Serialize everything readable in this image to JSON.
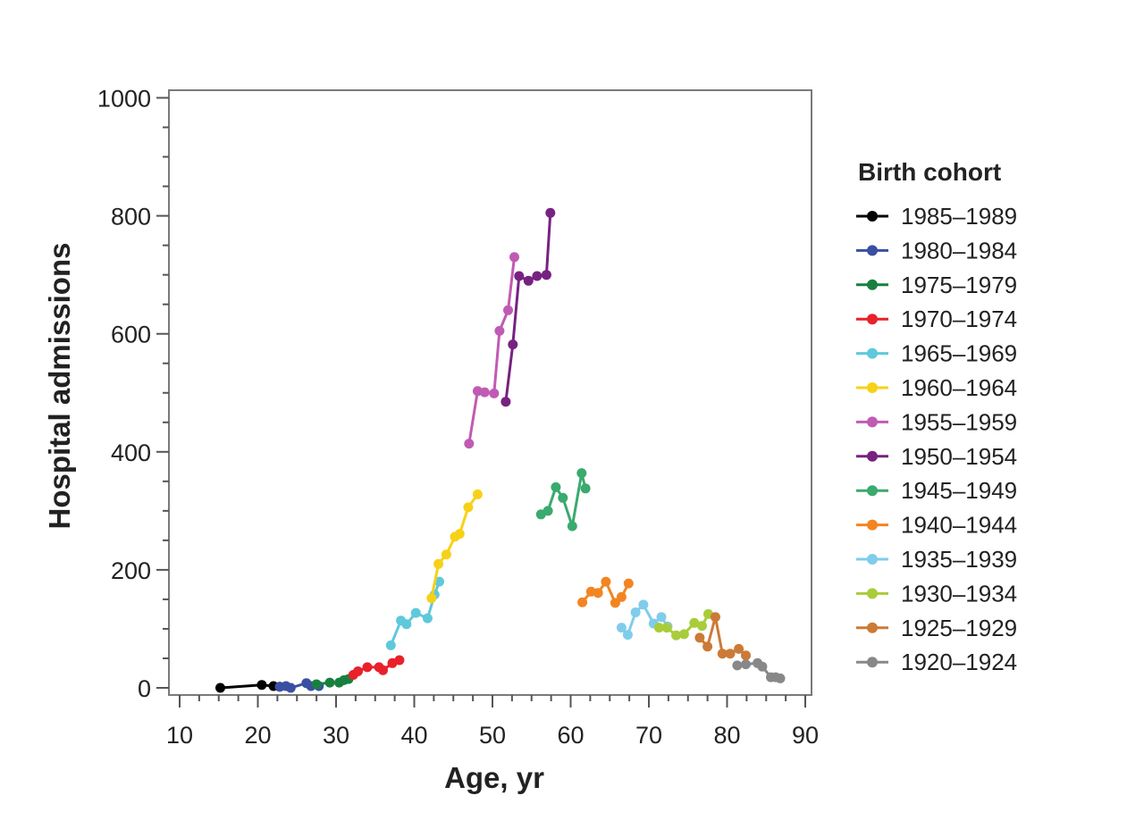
{
  "chart_data": {
    "type": "line",
    "xlabel": "Age, yr",
    "ylabel": "Hospital admissions",
    "xlim": [
      10,
      90
    ],
    "ylim": [
      0,
      1000
    ],
    "x_ticks": [
      "10",
      "20",
      "30",
      "40",
      "50",
      "60",
      "70",
      "80",
      "90"
    ],
    "y_ticks": [
      "0",
      "200",
      "400",
      "600",
      "800",
      "1000"
    ],
    "grid": false,
    "legend_title": "Birth cohort",
    "legend_position": "right",
    "series": [
      {
        "name": "1985–1989",
        "color": "#000000",
        "points": [
          [
            15.2,
            0
          ],
          [
            20.5,
            5
          ],
          [
            22,
            3
          ],
          [
            22.8,
            2
          ]
        ]
      },
      {
        "name": "1980–1984",
        "color": "#3a4fa3",
        "points": [
          [
            22.8,
            2
          ],
          [
            23.6,
            3
          ],
          [
            24.2,
            0
          ],
          [
            26.2,
            8
          ],
          [
            26.8,
            3
          ],
          [
            27.8,
            3
          ]
        ]
      },
      {
        "name": "1975–1979",
        "color": "#18803f",
        "points": [
          [
            27.5,
            6
          ],
          [
            29.2,
            9
          ],
          [
            30.4,
            9
          ],
          [
            31,
            13
          ],
          [
            31.6,
            15
          ]
        ]
      },
      {
        "name": "1970–1974",
        "color": "#e8212b",
        "points": [
          [
            32.2,
            22
          ],
          [
            32.8,
            28
          ],
          [
            34,
            35
          ],
          [
            35.5,
            35
          ],
          [
            36,
            30
          ],
          [
            37.2,
            42
          ],
          [
            38.1,
            47
          ]
        ]
      },
      {
        "name": "1965–1969",
        "color": "#5ec9db",
        "points": [
          [
            37,
            72
          ],
          [
            38.3,
            114
          ],
          [
            39,
            108
          ],
          [
            40.2,
            127
          ],
          [
            41.7,
            118
          ],
          [
            42.6,
            158
          ],
          [
            43.2,
            180
          ]
        ]
      },
      {
        "name": "1960–1964",
        "color": "#f7d117",
        "points": [
          [
            42.2,
            152
          ],
          [
            43.1,
            210
          ],
          [
            44.1,
            226
          ],
          [
            45.2,
            256
          ],
          [
            45.8,
            261
          ],
          [
            46.9,
            306
          ],
          [
            48.1,
            328
          ]
        ]
      },
      {
        "name": "1955–1959",
        "color": "#c05bb3",
        "points": [
          [
            47,
            414
          ],
          [
            48.1,
            503
          ],
          [
            49,
            501
          ],
          [
            50.2,
            499
          ],
          [
            50.9,
            605
          ],
          [
            52,
            640
          ],
          [
            52.8,
            730
          ]
        ]
      },
      {
        "name": "1950–1954",
        "color": "#772281",
        "points": [
          [
            51.7,
            485
          ],
          [
            52.6,
            582
          ],
          [
            53.4,
            698
          ],
          [
            54.6,
            690
          ],
          [
            55.7,
            698
          ],
          [
            56.9,
            700
          ],
          [
            57.4,
            805
          ]
        ]
      },
      {
        "name": "1945–1949",
        "color": "#3aaa6e",
        "points": [
          [
            56.2,
            294
          ],
          [
            57.1,
            300
          ],
          [
            58.1,
            340
          ],
          [
            59,
            322
          ],
          [
            60.2,
            274
          ],
          [
            61.4,
            364
          ],
          [
            61.9,
            338
          ]
        ]
      },
      {
        "name": "1940–1944",
        "color": "#f28522",
        "points": [
          [
            61.5,
            145
          ],
          [
            62.6,
            163
          ],
          [
            63.5,
            161
          ],
          [
            64.5,
            180
          ],
          [
            65.7,
            144
          ],
          [
            66.5,
            154
          ],
          [
            67.4,
            177
          ]
        ]
      },
      {
        "name": "1935–1939",
        "color": "#7fcdeb",
        "points": [
          [
            66.5,
            102
          ],
          [
            67.3,
            90
          ],
          [
            68.3,
            128
          ],
          [
            69.3,
            141
          ],
          [
            70.6,
            109
          ],
          [
            71.6,
            120
          ],
          [
            72.4,
            104
          ]
        ]
      },
      {
        "name": "1930–1934",
        "color": "#a9cc3a",
        "points": [
          [
            71.3,
            102
          ],
          [
            72.3,
            102
          ],
          [
            73.5,
            89
          ],
          [
            74.5,
            91
          ],
          [
            75.8,
            110
          ],
          [
            76.8,
            105
          ],
          [
            77.6,
            125
          ]
        ]
      },
      {
        "name": "1925–1929",
        "color": "#cc7a36",
        "points": [
          [
            76.5,
            85
          ],
          [
            77.5,
            70
          ],
          [
            78.5,
            120
          ],
          [
            79.4,
            58
          ],
          [
            80.4,
            58
          ],
          [
            81.5,
            66
          ],
          [
            82.4,
            55
          ]
        ]
      },
      {
        "name": "1920–1924",
        "color": "#888888",
        "points": [
          [
            81.3,
            38
          ],
          [
            82.4,
            40
          ],
          [
            83.9,
            42
          ],
          [
            84.5,
            36
          ],
          [
            85.6,
            18
          ],
          [
            86.2,
            18
          ],
          [
            86.8,
            16
          ]
        ]
      }
    ]
  }
}
